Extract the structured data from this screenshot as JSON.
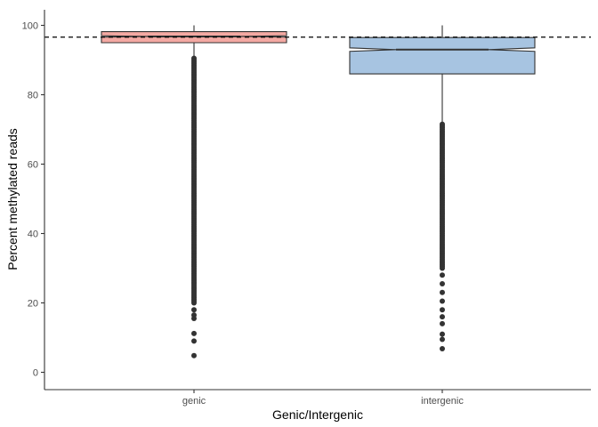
{
  "chart_data": {
    "type": "boxplot",
    "xlabel": "Genic/Intergenic",
    "ylabel": "Percent methylated reads",
    "categories": [
      "genic",
      "intergenic"
    ],
    "ylim": [
      -5,
      105
    ],
    "yticks": [
      0,
      20,
      40,
      60,
      80
    ],
    "grid": false,
    "legend": "none",
    "reference_line": {
      "y": 96.6,
      "style": "dashed",
      "color": "#000000"
    },
    "boxes": [
      {
        "category": "genic",
        "fill": "#F4A9A3",
        "stroke": "#333333",
        "q1": 95.0,
        "median": 96.8,
        "q3": 98.2,
        "notch_low": 96.6,
        "notch_high": 97.0,
        "whisker_low": 90.6,
        "whisker_high": 100.0,
        "outliers_dense_range": [
          20.0,
          90.6
        ],
        "outliers": [
          18.0,
          16.5,
          15.5,
          11.2,
          9.0,
          4.8
        ]
      },
      {
        "category": "intergenic",
        "fill": "#A7C4E1",
        "stroke": "#333333",
        "q1": 86.0,
        "median": 93.0,
        "q3": 96.5,
        "notch_low": 92.5,
        "notch_high": 93.5,
        "whisker_low": 71.5,
        "whisker_high": 100.0,
        "outliers_dense_range": [
          30.0,
          71.5
        ],
        "outliers": [
          28.0,
          25.5,
          23.0,
          20.5,
          18.0,
          16.0,
          14.0,
          11.0,
          9.5,
          6.8
        ]
      }
    ]
  }
}
